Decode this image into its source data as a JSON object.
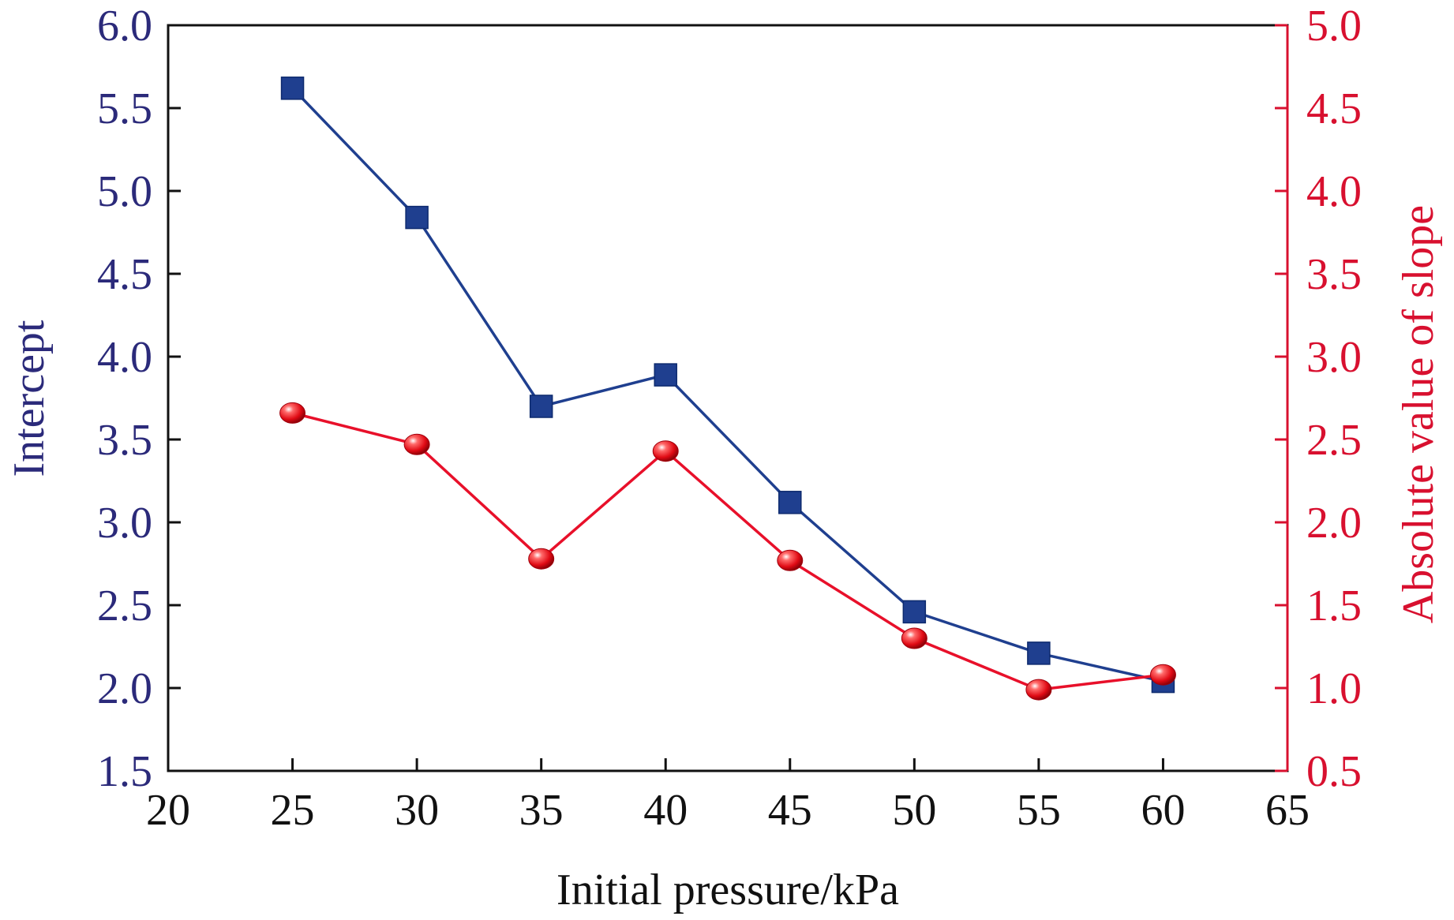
{
  "chart_data": {
    "type": "line",
    "xlabel": "Initial pressure/kPa",
    "ylabel_left": "Intercept",
    "ylabel_right": "Absolute value of slope",
    "xlim": [
      20,
      65
    ],
    "ylim_left": [
      1.5,
      6.0
    ],
    "ylim_right": [
      0.5,
      5.0
    ],
    "x_ticks": [
      "20",
      "25",
      "30",
      "35",
      "40",
      "45",
      "50",
      "55",
      "60",
      "65"
    ],
    "y_left_ticks": [
      "1.5",
      "2.0",
      "2.5",
      "3.0",
      "3.5",
      "4.0",
      "4.5",
      "5.0",
      "5.5",
      "6.0"
    ],
    "y_right_ticks": [
      "0.5",
      "1.0",
      "1.5",
      "2.0",
      "2.5",
      "3.0",
      "3.5",
      "4.0",
      "4.5",
      "5.0"
    ],
    "x": [
      25,
      30,
      35,
      40,
      45,
      50,
      55,
      60
    ],
    "series": [
      {
        "axis": "left",
        "marker": "square",
        "color": "#1f3f8f",
        "values": [
          5.62,
          4.84,
          3.7,
          3.89,
          3.12,
          2.46,
          2.21,
          2.04
        ]
      },
      {
        "axis": "right",
        "marker": "sphere",
        "color": "#e8102a",
        "values": [
          2.66,
          2.47,
          1.78,
          2.43,
          1.77,
          1.3,
          0.99,
          1.08
        ]
      }
    ],
    "colors": {
      "left_axis": "#2b2a7a",
      "right_axis": "#d8102f",
      "frame": "#111111"
    },
    "grid": false,
    "legend": "none"
  }
}
